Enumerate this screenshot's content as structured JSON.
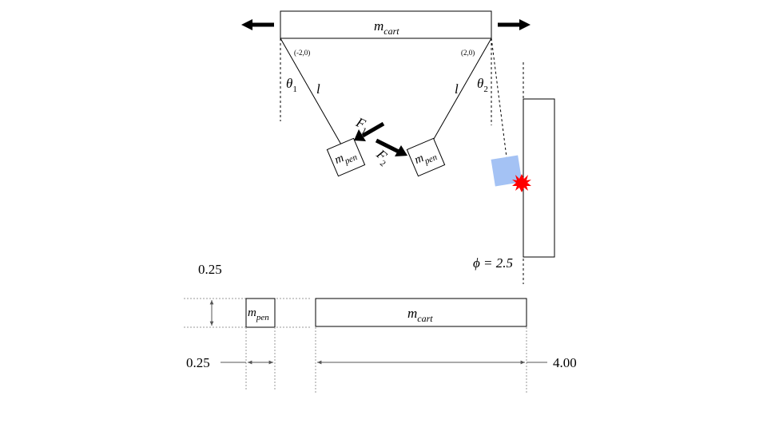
{
  "cart": {
    "mass_symbol": "m",
    "mass_subscript": "cart"
  },
  "pendulum": {
    "mass_symbol": "m",
    "mass_subscript": "pen",
    "length_label": "l",
    "angle1_symbol": "θ",
    "angle1_subscript": "1",
    "angle2_symbol": "θ",
    "angle2_subscript": "2",
    "pivot_left": "(-2,0)",
    "pivot_right": "(2,0)"
  },
  "forces": {
    "f1_symbol": "F",
    "f1_subscript": "1",
    "f2_symbol": "F",
    "f2_subscript": "2"
  },
  "wall": {
    "phi_label": "ϕ = 2.5"
  },
  "dimensions": {
    "pen_height": "0.25",
    "pen_width": "0.25",
    "cart_width": "4.00",
    "cart_mass_symbol": "m",
    "cart_mass_subscript": "cart",
    "pen_mass_symbol": "m",
    "pen_mass_subscript": "pen"
  },
  "colors": {
    "collision_block": "#a4c2f4",
    "impact_burst": "#ff0000",
    "line": "#000000"
  }
}
